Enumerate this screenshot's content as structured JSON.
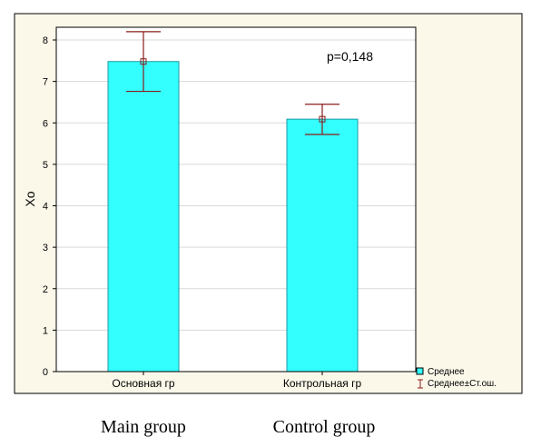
{
  "colors": {
    "panel_bg": "#fbf8ea",
    "bar_fill": "#33ffff",
    "bar_stroke": "#1b9aa0",
    "error_color": "#8b1a1a",
    "grid": "#d9d9d9"
  },
  "chart_data": {
    "type": "bar",
    "categories": [
      "Основная гр",
      "Контрольная гр"
    ],
    "values": [
      7.48,
      6.09
    ],
    "errors": [
      {
        "low": 6.76,
        "high": 8.2
      },
      {
        "low": 5.72,
        "high": 6.45
      }
    ],
    "ylabel": "Xo",
    "xlabel": "",
    "ylim": [
      0,
      8.4
    ],
    "yticks": [
      "0",
      "1",
      "2",
      "3",
      "4",
      "5",
      "6",
      "7",
      "8"
    ],
    "annotation": "p=0,148",
    "legend": {
      "placement": "bottom-right",
      "mean_label": "Среднее",
      "error_label": "Среднее±Ст.ош."
    },
    "grid": true
  },
  "captions": [
    "Main group",
    "Control group"
  ]
}
